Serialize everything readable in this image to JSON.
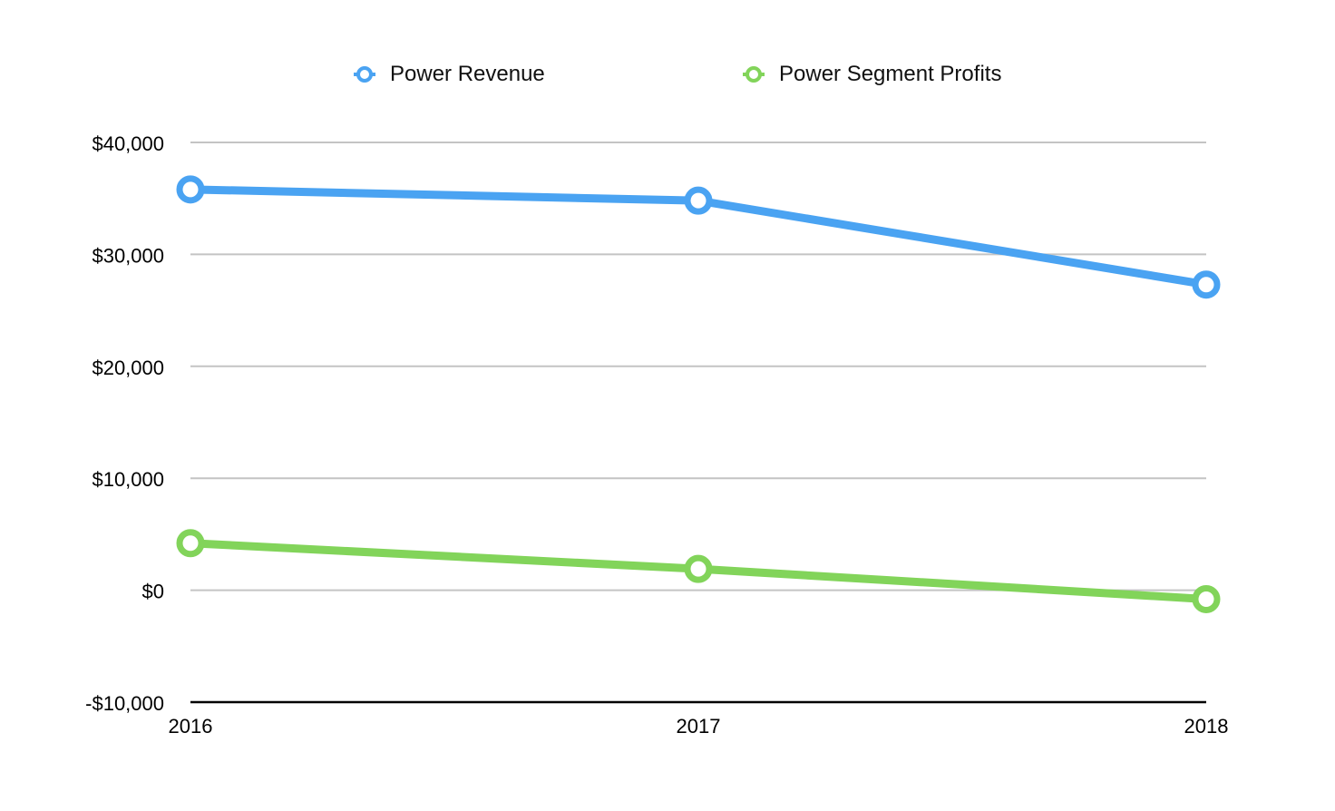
{
  "chart_data": {
    "type": "line",
    "categories": [
      "2016",
      "2017",
      "2018"
    ],
    "series": [
      {
        "name": "Power Revenue",
        "values": [
          35800,
          34800,
          27300
        ],
        "color": "#4aa3f2"
      },
      {
        "name": "Power Segment Profits",
        "values": [
          4200,
          1900,
          -800
        ],
        "color": "#82d45a"
      }
    ],
    "ylim": [
      -10000,
      40000
    ],
    "yticks": [
      -10000,
      0,
      10000,
      20000,
      30000,
      40000
    ],
    "ytick_labels": [
      "-$10,000",
      "$0",
      "$10,000",
      "$20,000",
      "$30,000",
      "$40,000"
    ],
    "grid": true,
    "legend_position": "top",
    "gridline_color": "#c4c4c4",
    "axis_color": "#000000"
  }
}
